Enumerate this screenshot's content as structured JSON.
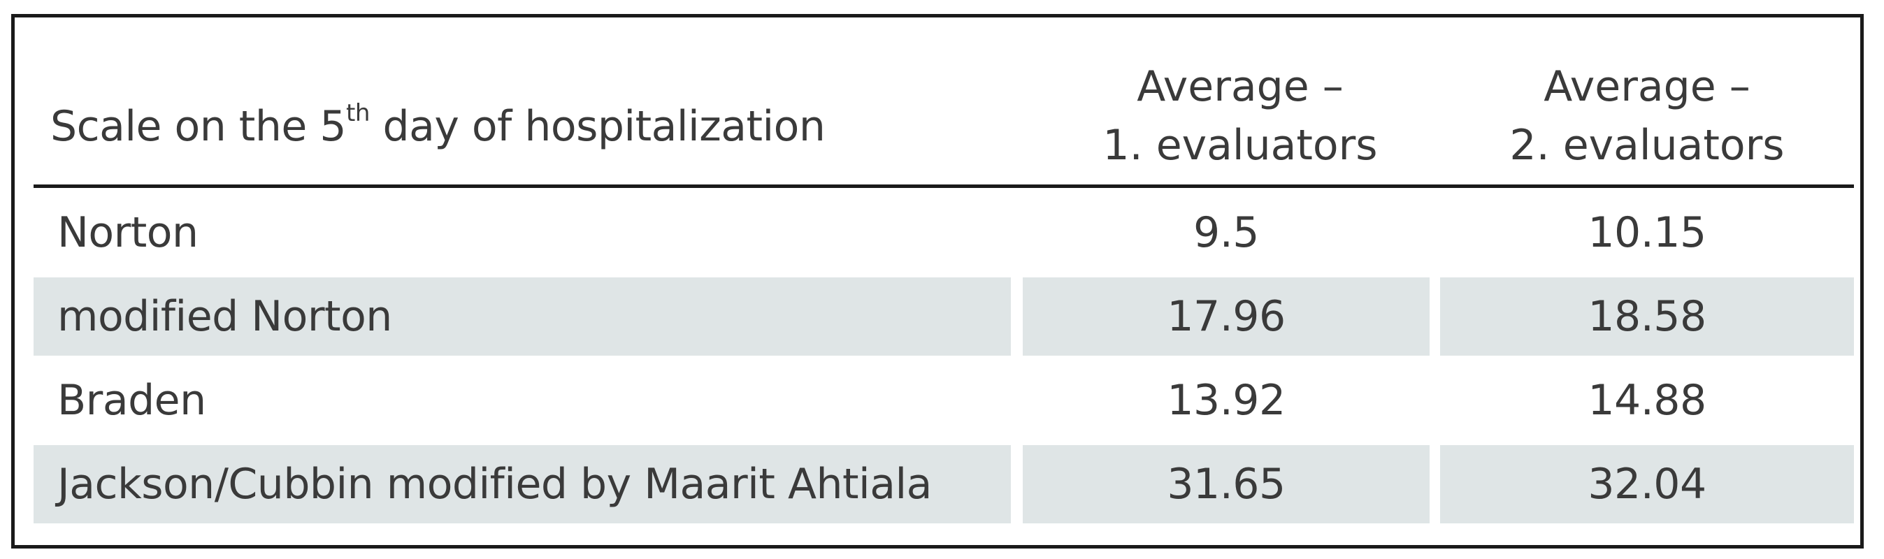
{
  "table": {
    "header": {
      "scale_label_pre": "Scale on the 5",
      "scale_label_sup": "th",
      "scale_label_post": " day of hospitalization",
      "col1_line1": "Average –",
      "col1_line2": "1. evaluators",
      "col2_line1": "Average –",
      "col2_line2": "2. evaluators"
    },
    "rows": [
      {
        "scale": "Norton",
        "avg1": "9.5",
        "avg2": "10.15"
      },
      {
        "scale": "modified Norton",
        "avg1": "17.96",
        "avg2": "18.58"
      },
      {
        "scale": "Braden",
        "avg1": "13.92",
        "avg2": "14.88"
      },
      {
        "scale": "Jackson/Cubbin modified by Maarit Ahtiala",
        "avg1": "31.65",
        "avg2": "32.04"
      }
    ]
  }
}
